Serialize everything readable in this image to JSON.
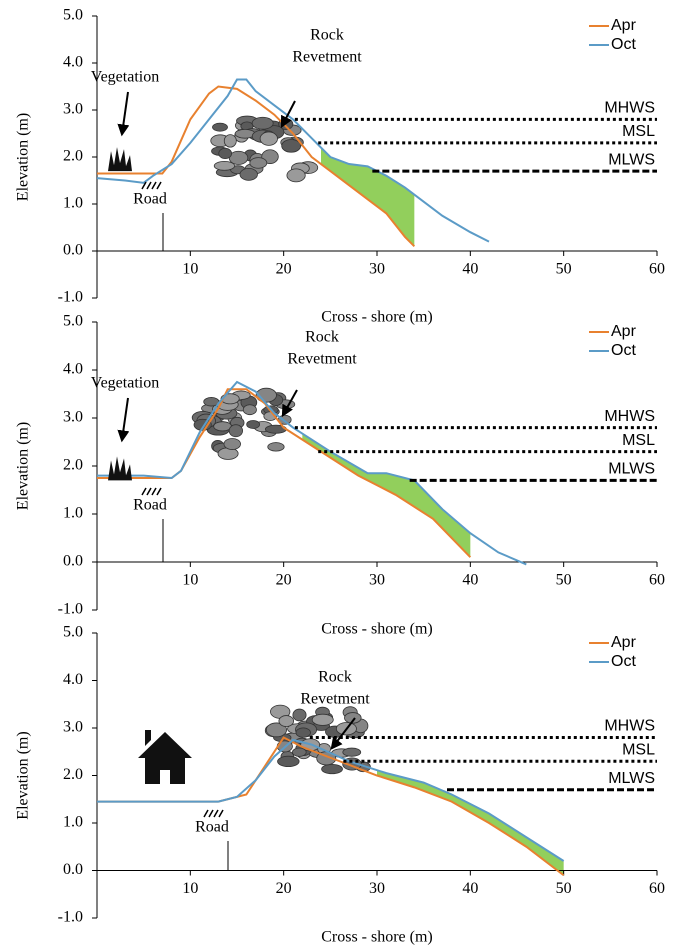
{
  "chart_data": [
    {
      "type": "line",
      "xlabel": "Cross - shore (m)",
      "ylabel": "Elevation (m)",
      "legend": "upper right",
      "xlim": [
        0,
        60
      ],
      "xticks": [
        10,
        20,
        30,
        40,
        50,
        60
      ],
      "ylim": [
        -1,
        5
      ],
      "yticks": [
        {
          "value": -1,
          "label": "-1.0"
        },
        {
          "value": 0,
          "label": "0.0"
        },
        {
          "value": 1,
          "label": "1.0"
        },
        {
          "value": 2,
          "label": "2.0"
        },
        {
          "value": 3,
          "label": "3.0"
        },
        {
          "value": 4,
          "label": "4.0"
        },
        {
          "value": 5,
          "label": "5.0"
        }
      ],
      "series": [
        {
          "name": "Apr",
          "color": "#e8812f",
          "x": [
            0,
            5,
            7,
            8,
            10,
            12,
            13,
            15,
            17,
            19,
            21,
            23,
            25,
            27,
            29,
            31,
            33,
            34
          ],
          "values": [
            1.65,
            1.65,
            1.65,
            1.9,
            2.8,
            3.35,
            3.5,
            3.45,
            3.2,
            2.9,
            2.5,
            2.0,
            1.7,
            1.4,
            1.1,
            0.8,
            0.3,
            0.1
          ]
        },
        {
          "name": "Oct",
          "color": "#5b9bc7",
          "x": [
            0,
            3,
            5,
            6,
            8,
            10,
            12,
            14,
            15,
            16,
            17,
            19,
            21,
            23,
            25,
            27,
            29,
            31,
            33,
            35,
            37,
            40,
            42
          ],
          "values": [
            1.55,
            1.5,
            1.45,
            1.6,
            1.85,
            2.3,
            2.8,
            3.3,
            3.65,
            3.65,
            3.4,
            3.1,
            2.8,
            2.4,
            2.0,
            1.85,
            1.8,
            1.6,
            1.35,
            1.05,
            0.75,
            0.4,
            0.2
          ]
        }
      ],
      "fill": {
        "color": "#92cf5c",
        "x_range": [
          24,
          34
        ]
      },
      "levels": [
        {
          "name": "MHWS",
          "value": 2.8,
          "x_start": 21.2
        },
        {
          "name": "MSL",
          "value": 2.3,
          "x_start": 23.7
        },
        {
          "name": "MLWS",
          "value": 1.7,
          "x_start": 29.5
        }
      ],
      "annotations": {
        "vegetation": "Vegetation",
        "road": "Road",
        "revetment": [
          "Rock",
          "Revetment"
        ]
      }
    },
    {
      "type": "line",
      "xlabel": "Cross - shore (m)",
      "ylabel": "Elevation (m)",
      "legend": "upper right",
      "xlim": [
        0,
        60
      ],
      "xticks": [
        10,
        20,
        30,
        40,
        50,
        60
      ],
      "ylim": [
        -1,
        5
      ],
      "yticks": [
        {
          "value": -1,
          "label": "-1.0"
        },
        {
          "value": 0,
          "label": "0.0"
        },
        {
          "value": 1,
          "label": "1.0"
        },
        {
          "value": 2,
          "label": "2.0"
        },
        {
          "value": 3,
          "label": "3.0"
        },
        {
          "value": 4,
          "label": "4.0"
        },
        {
          "value": 5,
          "label": "5.0"
        }
      ],
      "series": [
        {
          "name": "Apr",
          "color": "#e8812f",
          "x": [
            0,
            5,
            8,
            9,
            11,
            13,
            14,
            16,
            18,
            20,
            24,
            28,
            32,
            36,
            40
          ],
          "values": [
            1.75,
            1.75,
            1.75,
            1.9,
            2.6,
            3.2,
            3.6,
            3.6,
            3.3,
            2.8,
            2.3,
            1.8,
            1.4,
            0.9,
            0.1
          ]
        },
        {
          "name": "Oct",
          "color": "#5b9bc7",
          "x": [
            0,
            5,
            8,
            9,
            11,
            13,
            15,
            17,
            19,
            21,
            25,
            29,
            31,
            34,
            37,
            40,
            43,
            46
          ],
          "values": [
            1.8,
            1.8,
            1.75,
            1.9,
            2.7,
            3.3,
            3.75,
            3.55,
            3.1,
            2.8,
            2.3,
            1.85,
            1.85,
            1.7,
            1.1,
            0.6,
            0.2,
            -0.05
          ]
        }
      ],
      "fill": {
        "color": "#92cf5c",
        "x_range": [
          22,
          40
        ]
      },
      "levels": [
        {
          "name": "MHWS",
          "value": 2.8,
          "x_start": 21.2
        },
        {
          "name": "MSL",
          "value": 2.3,
          "x_start": 23.7
        },
        {
          "name": "MLWS",
          "value": 1.7,
          "x_start": 33.5
        }
      ],
      "annotations": {
        "vegetation": "Vegetation",
        "road": "Road",
        "revetment": [
          "Rock",
          "Revetment"
        ]
      }
    },
    {
      "type": "line",
      "xlabel": "Cross - shore (m)",
      "ylabel": "Elevation (m)",
      "legend": "upper right",
      "xlim": [
        0,
        60
      ],
      "xticks": [
        10,
        20,
        30,
        40,
        50,
        60
      ],
      "ylim": [
        -1,
        5
      ],
      "yticks": [
        {
          "value": -1,
          "label": "-1.0"
        },
        {
          "value": 0,
          "label": "0.0"
        },
        {
          "value": 1,
          "label": "1.0"
        },
        {
          "value": 2,
          "label": "2.0"
        },
        {
          "value": 3,
          "label": "3.0"
        },
        {
          "value": 4,
          "label": "4.0"
        },
        {
          "value": 5,
          "label": "5.0"
        }
      ],
      "series": [
        {
          "name": "Apr",
          "color": "#e8812f",
          "x": [
            0,
            10,
            13,
            16,
            18,
            20,
            22,
            26,
            30,
            34,
            38,
            42,
            46,
            50
          ],
          "values": [
            1.45,
            1.45,
            1.45,
            1.6,
            2.2,
            2.8,
            2.6,
            2.3,
            2.0,
            1.75,
            1.45,
            1.0,
            0.5,
            -0.1
          ]
        },
        {
          "name": "Oct",
          "color": "#5b9bc7",
          "x": [
            0,
            13,
            15,
            17,
            19,
            21,
            23,
            27,
            31,
            35,
            38,
            42,
            46,
            50
          ],
          "values": [
            1.45,
            1.45,
            1.55,
            1.9,
            2.4,
            2.75,
            2.65,
            2.3,
            2.05,
            1.85,
            1.6,
            1.2,
            0.7,
            0.2
          ]
        }
      ],
      "fill": {
        "color": "#92cf5c",
        "x_range": [
          30,
          50
        ]
      },
      "levels": [
        {
          "name": "MHWS",
          "value": 2.8,
          "x_start": 22.8
        },
        {
          "name": "MSL",
          "value": 2.3,
          "x_start": 26.4
        },
        {
          "name": "MLWS",
          "value": 1.7,
          "x_start": 37.5
        }
      ],
      "annotations": {
        "road": "Road",
        "revetment": [
          "Rock",
          "Revetment"
        ]
      }
    }
  ]
}
